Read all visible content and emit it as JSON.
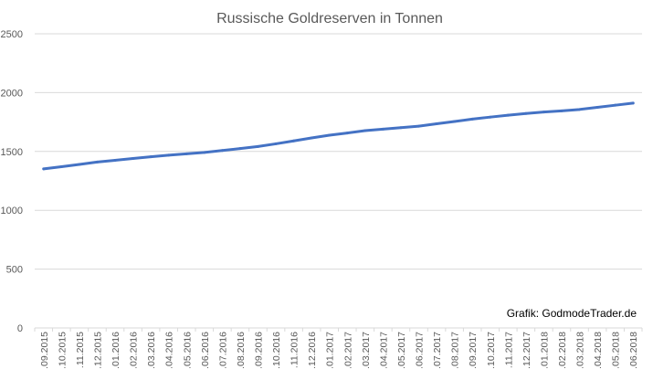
{
  "chart_data": {
    "type": "line",
    "title": "Russische Goldreserven in Tonnen",
    "xlabel": "",
    "ylabel": "",
    "ylim": [
      0,
      2500
    ],
    "yticks": [
      0,
      500,
      1000,
      1500,
      2000,
      2500
    ],
    "grid": "horizontal",
    "categories": [
      ".09.2015",
      ".10.2015",
      ".11.2015",
      ".12.2015",
      ".01.2016",
      ".02.2016",
      ".03.2016",
      ".04.2016",
      ".05.2016",
      ".06.2016",
      ".07.2016",
      ".08.2016",
      ".09.2016",
      ".10.2016",
      ".11.2016",
      ".12.2016",
      ".01.2017",
      ".02.2017",
      ".03.2017",
      ".04.2017",
      ".05.2017",
      ".06.2017",
      ".07.2017",
      ".08.2017",
      ".09.2017",
      ".10.2017",
      ".11.2017",
      ".12.2017",
      ".01.2018",
      ".02.2018",
      ".03.2018",
      ".04.2018",
      ".05.2018",
      ".06.2018"
    ],
    "series": [
      {
        "values": [
          1352,
          1370,
          1390,
          1410,
          1425,
          1440,
          1455,
          1468,
          1480,
          1492,
          1508,
          1525,
          1542,
          1565,
          1590,
          1615,
          1638,
          1657,
          1677,
          1690,
          1702,
          1715,
          1735,
          1755,
          1775,
          1792,
          1808,
          1823,
          1835,
          1845,
          1857,
          1875,
          1893,
          1911
        ],
        "color": "#4472C4"
      }
    ],
    "annotation": "Grafik: GodmodeTrader.de",
    "colors": {
      "line": "#4472C4",
      "grid": "#D9D9D9",
      "text": "#595959",
      "title": "#595959",
      "annotation": "#000000"
    }
  }
}
